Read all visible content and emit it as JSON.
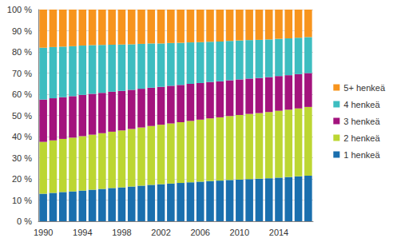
{
  "chart_data": {
    "type": "bar",
    "stacked": true,
    "grid": true,
    "legend": "right",
    "categories": [
      "1990",
      null,
      null,
      null,
      "1994",
      null,
      null,
      null,
      "1998",
      null,
      null,
      null,
      "2002",
      null,
      null,
      null,
      "2006",
      null,
      null,
      null,
      "2010",
      null,
      null,
      null,
      "2014",
      null,
      null,
      null
    ],
    "ylim": [
      0,
      100
    ],
    "yticks": [
      {
        "value": 0,
        "label": "0 %"
      },
      {
        "value": 10,
        "label": "10 %"
      },
      {
        "value": 20,
        "label": "20 %"
      },
      {
        "value": 30,
        "label": "30 %"
      },
      {
        "value": 40,
        "label": "40 %"
      },
      {
        "value": 50,
        "label": "50 %"
      },
      {
        "value": 60,
        "label": "60 %"
      },
      {
        "value": 70,
        "label": "70 %"
      },
      {
        "value": 80,
        "label": "80 %"
      },
      {
        "value": 90,
        "label": "90 %"
      },
      {
        "value": 100,
        "label": "100 %"
      }
    ],
    "series": [
      {
        "name": "1 henkeä",
        "color": "#1a6fae",
        "values": [
          13.0,
          13.4,
          13.8,
          14.1,
          14.5,
          14.9,
          15.3,
          15.7,
          16.0,
          16.4,
          16.8,
          17.2,
          17.5,
          17.8,
          18.1,
          18.4,
          18.7,
          19.0,
          19.2,
          19.5,
          19.7,
          19.9,
          20.1,
          20.3,
          20.6,
          20.9,
          21.2,
          21.5
        ]
      },
      {
        "name": "2 henkeä",
        "color": "#bcd632",
        "values": [
          24.5,
          24.8,
          25.1,
          25.4,
          25.7,
          26.0,
          26.3,
          26.6,
          26.9,
          27.2,
          27.5,
          27.8,
          28.1,
          28.4,
          28.7,
          29.0,
          29.3,
          29.6,
          29.9,
          30.2,
          30.5,
          30.8,
          31.0,
          31.3,
          31.6,
          31.8,
          32.1,
          32.5
        ]
      },
      {
        "name": "3 henkeä",
        "color": "#a3137d",
        "values": [
          20.0,
          19.9,
          19.7,
          19.6,
          19.5,
          19.3,
          19.1,
          18.9,
          18.7,
          18.5,
          18.3,
          18.1,
          17.9,
          17.8,
          17.6,
          17.5,
          17.3,
          17.2,
          17.0,
          16.9,
          16.8,
          16.7,
          16.6,
          16.5,
          16.4,
          16.3,
          16.2,
          16.0
        ]
      },
      {
        "name": "4 henkeä",
        "color": "#3dbdc0",
        "values": [
          24.5,
          24.2,
          23.9,
          23.6,
          23.3,
          23.0,
          22.6,
          22.2,
          21.9,
          21.5,
          21.2,
          20.9,
          20.5,
          20.2,
          19.9,
          19.6,
          19.3,
          19.0,
          18.8,
          18.6,
          18.4,
          18.2,
          18.0,
          17.8,
          17.6,
          17.4,
          17.2,
          17.0
        ]
      },
      {
        "name": "5+ henkeä",
        "color": "#f7941d",
        "values": [
          18.0,
          17.7,
          17.5,
          17.3,
          17.0,
          16.8,
          16.7,
          16.6,
          16.5,
          16.4,
          16.2,
          16.0,
          16.0,
          15.8,
          15.7,
          15.5,
          15.4,
          15.2,
          15.1,
          14.8,
          14.6,
          14.4,
          14.3,
          14.1,
          13.8,
          13.6,
          13.3,
          13.0
        ]
      }
    ]
  }
}
